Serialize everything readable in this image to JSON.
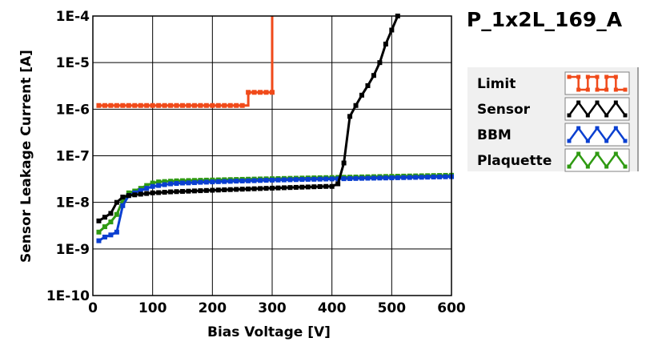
{
  "chart_data": {
    "type": "line",
    "title": "P_1x2L_169_A",
    "xlabel": "Bias Voltage [V]",
    "ylabel": "Sensor Leakage Current [A]",
    "xlim": [
      0,
      600
    ],
    "ylim": [
      1e-10,
      0.0001
    ],
    "yscale": "log",
    "grid": true,
    "legend_position": "right",
    "x_ticks": [
      {
        "value": 0,
        "label": "0"
      },
      {
        "value": 100,
        "label": "100"
      },
      {
        "value": 200,
        "label": "200"
      },
      {
        "value": 300,
        "label": "300"
      },
      {
        "value": 400,
        "label": "400"
      },
      {
        "value": 500,
        "label": "500"
      },
      {
        "value": 600,
        "label": "600"
      }
    ],
    "y_ticks": [
      {
        "value": 1e-10,
        "label": "1E-10"
      },
      {
        "value": 1e-09,
        "label": "1E-9"
      },
      {
        "value": 1e-08,
        "label": "1E-8"
      },
      {
        "value": 1e-07,
        "label": "1E-7"
      },
      {
        "value": 1e-06,
        "label": "1E-6"
      },
      {
        "value": 1e-05,
        "label": "1E-5"
      },
      {
        "value": 0.0001,
        "label": "1E-4"
      }
    ],
    "series": [
      {
        "name": "Limit",
        "color": "#f04a1a",
        "step": true,
        "x": [
          10,
          20,
          30,
          40,
          50,
          60,
          70,
          80,
          90,
          100,
          110,
          120,
          130,
          140,
          150,
          160,
          170,
          180,
          190,
          200,
          210,
          220,
          230,
          240,
          250,
          260,
          270,
          280,
          290,
          300
        ],
        "y": [
          1.2e-06,
          1.2e-06,
          1.2e-06,
          1.2e-06,
          1.2e-06,
          1.2e-06,
          1.2e-06,
          1.2e-06,
          1.2e-06,
          1.2e-06,
          1.2e-06,
          1.2e-06,
          1.2e-06,
          1.2e-06,
          1.2e-06,
          1.2e-06,
          1.2e-06,
          1.2e-06,
          1.2e-06,
          1.2e-06,
          1.2e-06,
          1.2e-06,
          1.2e-06,
          1.2e-06,
          1.2e-06,
          2.3e-06,
          2.3e-06,
          2.3e-06,
          2.3e-06,
          2.3e-06
        ],
        "end_y": 0.0001
      },
      {
        "name": "Sensor",
        "color": "#000000",
        "step": false,
        "x": [
          10,
          20,
          30,
          40,
          50,
          60,
          70,
          80,
          90,
          100,
          110,
          120,
          130,
          140,
          150,
          160,
          170,
          180,
          190,
          200,
          210,
          220,
          230,
          240,
          250,
          260,
          270,
          280,
          290,
          300,
          310,
          320,
          330,
          340,
          350,
          360,
          370,
          380,
          390,
          400,
          410,
          420,
          430,
          440,
          450,
          460,
          470,
          480,
          490,
          500,
          510
        ],
        "y": [
          4e-09,
          4.8e-09,
          5.8e-09,
          1e-08,
          1.3e-08,
          1.4e-08,
          1.45e-08,
          1.5e-08,
          1.55e-08,
          1.6e-08,
          1.62e-08,
          1.65e-08,
          1.68e-08,
          1.7e-08,
          1.72e-08,
          1.74e-08,
          1.76e-08,
          1.78e-08,
          1.8e-08,
          1.82e-08,
          1.84e-08,
          1.86e-08,
          1.88e-08,
          1.9e-08,
          1.92e-08,
          1.94e-08,
          1.96e-08,
          1.98e-08,
          2e-08,
          2.02e-08,
          2.04e-08,
          2.06e-08,
          2.08e-08,
          2.1e-08,
          2.12e-08,
          2.14e-08,
          2.16e-08,
          2.18e-08,
          2.2e-08,
          2.2e-08,
          2.5e-08,
          7e-08,
          7e-07,
          1.2e-06,
          2e-06,
          3.2e-06,
          5.3e-06,
          1e-05,
          2.5e-05,
          5e-05,
          0.0001
        ]
      },
      {
        "name": "BBM",
        "color": "#0a3fd0",
        "step": false,
        "x": [
          10,
          20,
          30,
          40,
          50,
          60,
          70,
          80,
          90,
          100,
          110,
          120,
          130,
          140,
          150,
          160,
          170,
          180,
          190,
          200,
          210,
          220,
          230,
          240,
          250,
          260,
          270,
          280,
          290,
          300,
          310,
          320,
          330,
          340,
          350,
          360,
          370,
          380,
          390,
          400,
          410,
          420,
          430,
          440,
          450,
          460,
          470,
          480,
          490,
          500,
          510,
          520,
          530,
          540,
          550,
          560,
          570,
          580,
          590,
          600
        ],
        "y": [
          1.5e-09,
          1.8e-09,
          2e-09,
          2.3e-09,
          8.5e-09,
          1.4e-08,
          1.6e-08,
          1.8e-08,
          2e-08,
          2.2e-08,
          2.3e-08,
          2.4e-08,
          2.5e-08,
          2.55e-08,
          2.6e-08,
          2.62e-08,
          2.65e-08,
          2.7e-08,
          2.72e-08,
          2.75e-08,
          2.78e-08,
          2.8e-08,
          2.83e-08,
          2.86e-08,
          2.88e-08,
          2.9e-08,
          2.92e-08,
          2.95e-08,
          2.98e-08,
          3e-08,
          3.02e-08,
          3.04e-08,
          3.06e-08,
          3.08e-08,
          3.1e-08,
          3.12e-08,
          3.13e-08,
          3.15e-08,
          3.17e-08,
          3.18e-08,
          3.2e-08,
          3.22e-08,
          3.24e-08,
          3.26e-08,
          3.28e-08,
          3.3e-08,
          3.31e-08,
          3.33e-08,
          3.34e-08,
          3.36e-08,
          3.38e-08,
          3.4e-08,
          3.42e-08,
          3.44e-08,
          3.46e-08,
          3.48e-08,
          3.5e-08,
          3.52e-08,
          3.54e-08,
          3.56e-08
        ]
      },
      {
        "name": "Plaquette",
        "color": "#2f9a12",
        "step": false,
        "x": [
          10,
          20,
          30,
          40,
          50,
          60,
          70,
          80,
          90,
          100,
          110,
          120,
          130,
          140,
          150,
          160,
          170,
          180,
          190,
          200,
          210,
          220,
          230,
          240,
          250,
          260,
          270,
          280,
          290,
          300,
          310,
          320,
          330,
          340,
          350,
          360,
          370,
          380,
          390,
          400,
          410,
          420,
          430,
          440,
          450,
          460,
          470,
          480,
          490,
          500,
          510,
          520,
          530,
          540,
          550,
          560,
          570,
          580,
          590,
          600
        ],
        "y": [
          2.3e-09,
          3e-09,
          3.8e-09,
          5.5e-09,
          1.1e-08,
          1.6e-08,
          1.75e-08,
          2e-08,
          2.3e-08,
          2.6e-08,
          2.75e-08,
          2.8e-08,
          2.85e-08,
          2.9e-08,
          2.92e-08,
          2.94e-08,
          2.96e-08,
          2.98e-08,
          3e-08,
          3.02e-08,
          3.04e-08,
          3.06e-08,
          3.08e-08,
          3.1e-08,
          3.12e-08,
          3.14e-08,
          3.16e-08,
          3.18e-08,
          3.2e-08,
          3.22e-08,
          3.24e-08,
          3.26e-08,
          3.28e-08,
          3.3e-08,
          3.32e-08,
          3.34e-08,
          3.36e-08,
          3.38e-08,
          3.4e-08,
          3.42e-08,
          3.44e-08,
          3.46e-08,
          3.48e-08,
          3.5e-08,
          3.52e-08,
          3.54e-08,
          3.56e-08,
          3.58e-08,
          3.6e-08,
          3.62e-08,
          3.64e-08,
          3.66e-08,
          3.68e-08,
          3.7e-08,
          3.72e-08,
          3.74e-08,
          3.76e-08,
          3.78e-08,
          3.8e-08,
          3.82e-08
        ]
      }
    ]
  }
}
